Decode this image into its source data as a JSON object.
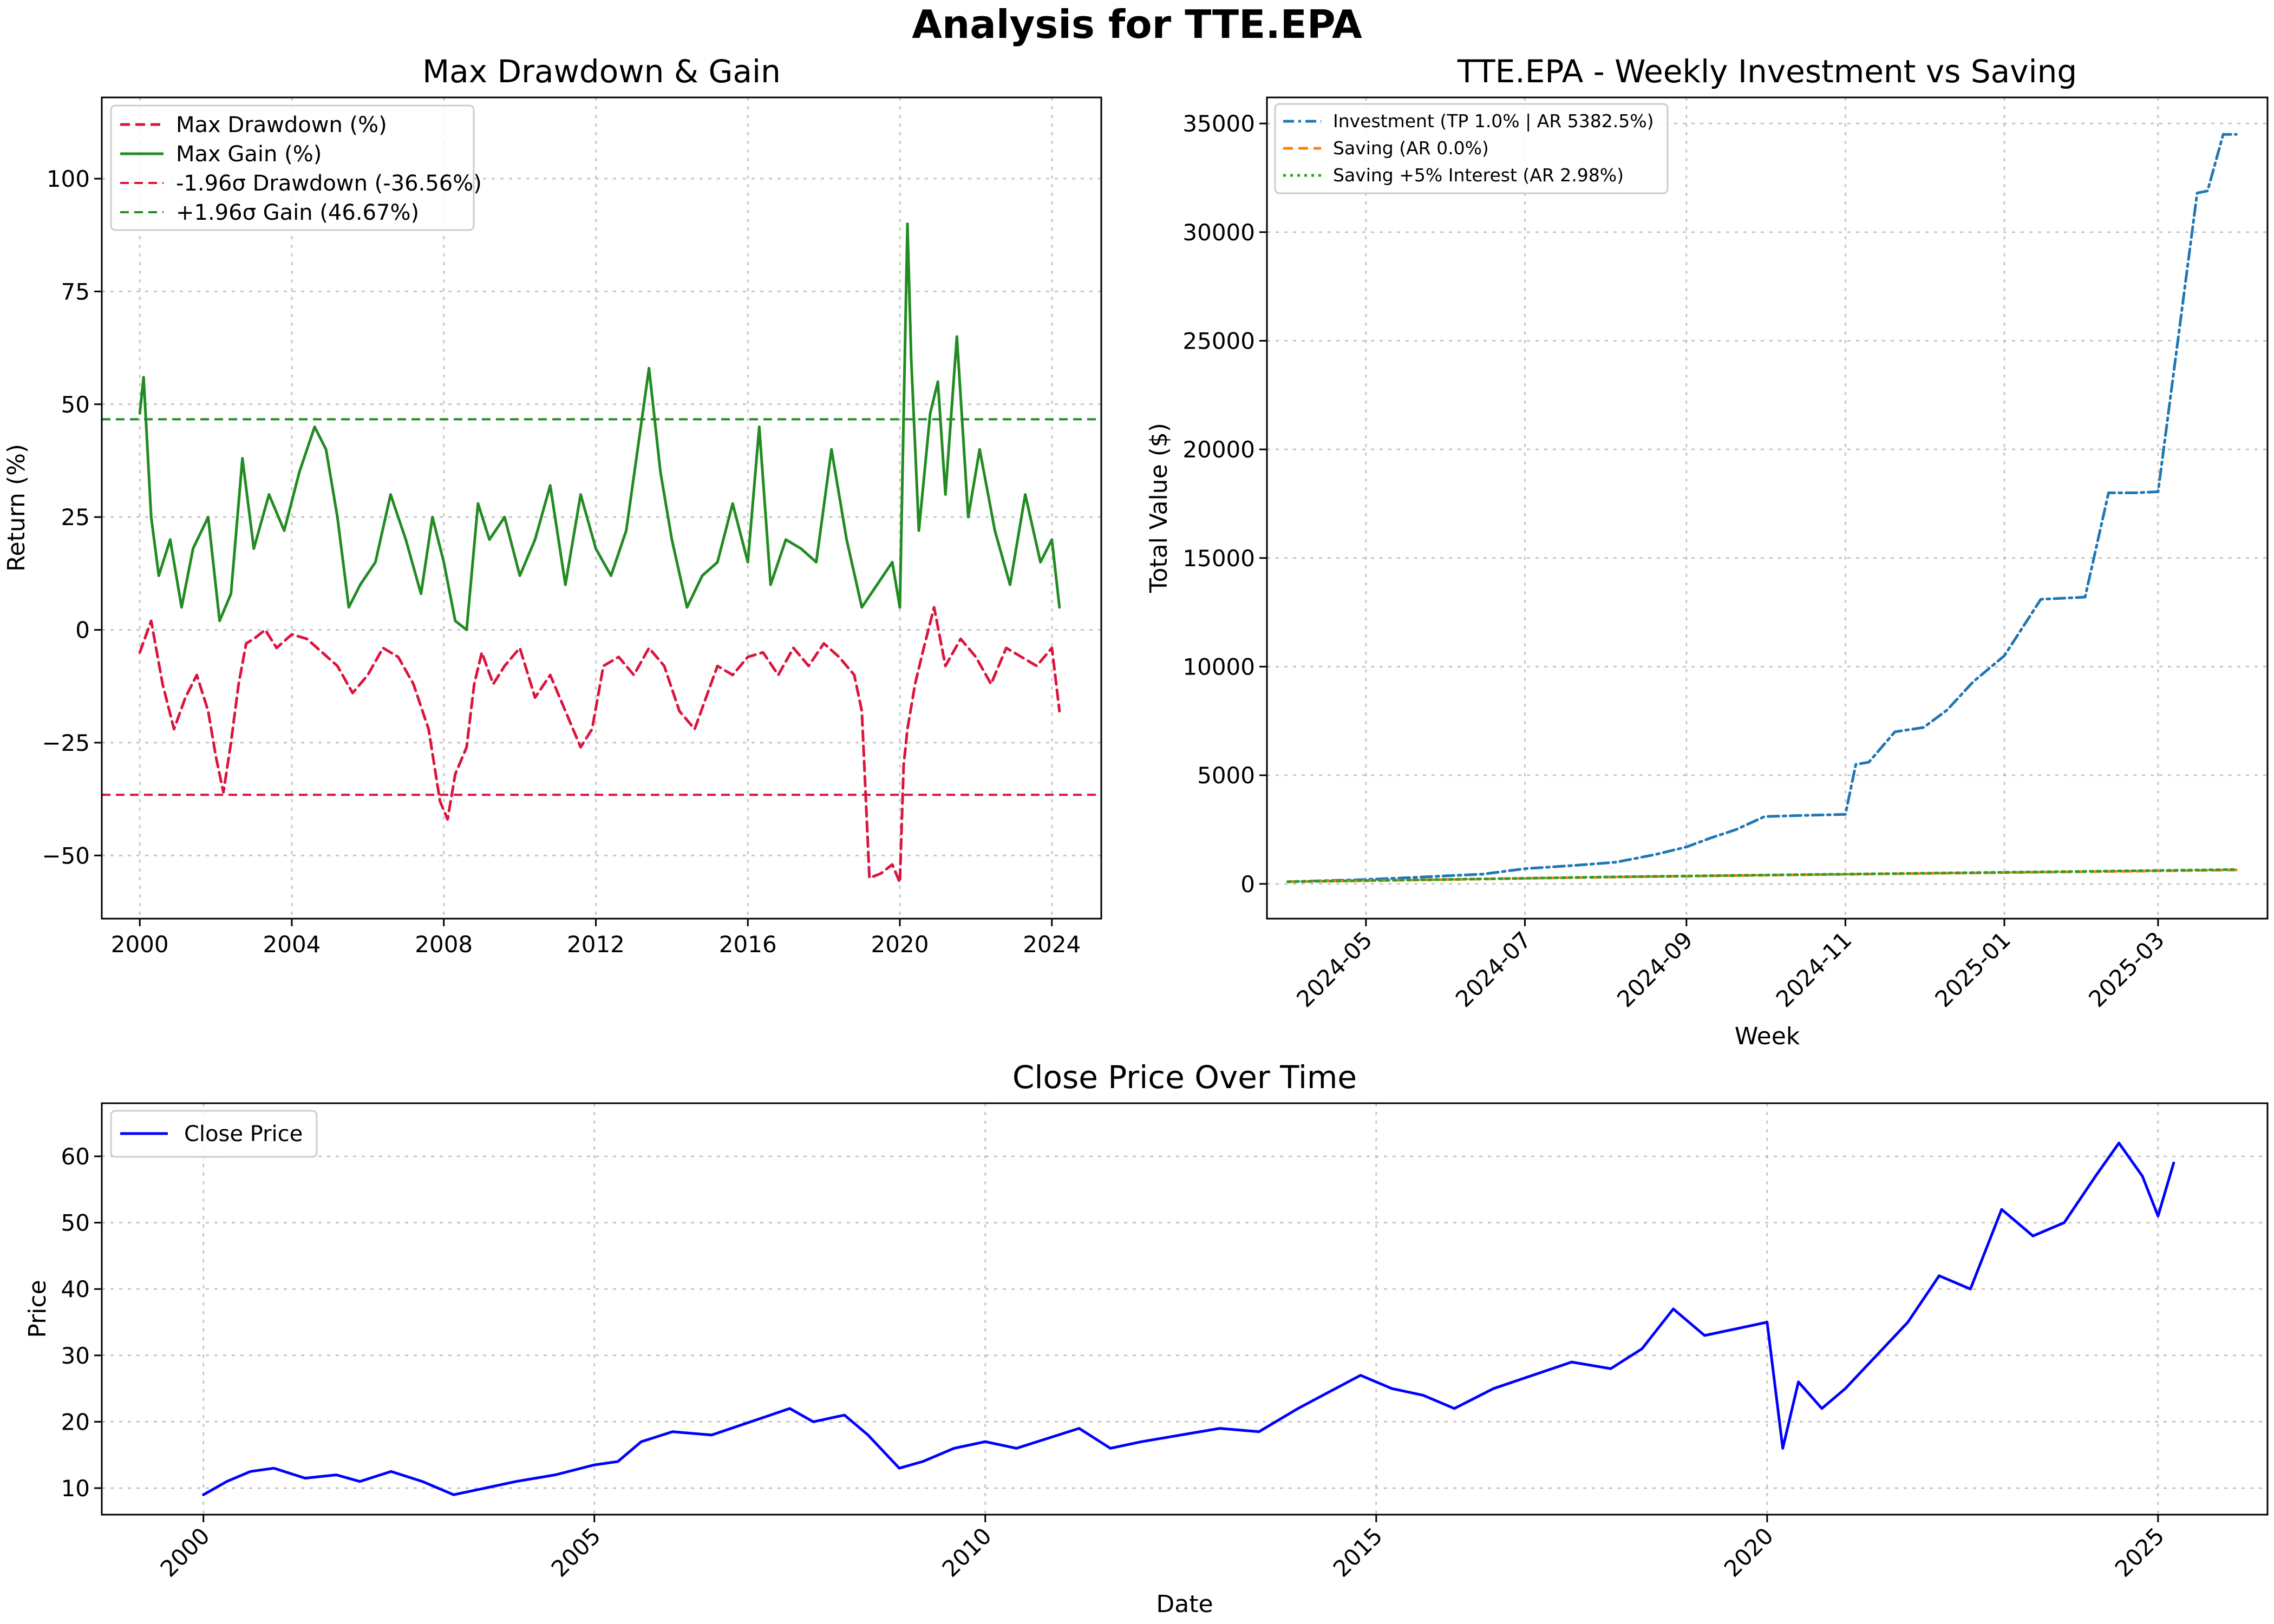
{
  "figure_title": "Analysis for TTE.EPA",
  "colors": {
    "drawdown": "#dc143c",
    "gain": "#228b22",
    "investment": "#1f77b4",
    "saving": "#ff7f0e",
    "saving_interest": "#2ca02c",
    "price": "#0000ff"
  },
  "chart_data": [
    {
      "type": "line",
      "title": "Max Drawdown & Gain",
      "xlabel": "",
      "ylabel": "Return (%)",
      "xlim": [
        1999.0,
        2025.3
      ],
      "ylim": [
        -64,
        118
      ],
      "xticks": [
        2000,
        2004,
        2008,
        2012,
        2016,
        2020,
        2024
      ],
      "xtick_labels": [
        "2000",
        "2004",
        "2008",
        "2012",
        "2016",
        "2020",
        "2024"
      ],
      "yticks": [
        -50,
        -25,
        0,
        25,
        50,
        75,
        100
      ],
      "ytick_labels": [
        "−50",
        "−25",
        "0",
        "25",
        "50",
        "75",
        "100"
      ],
      "grid": true,
      "legend_position": "top-left",
      "legend": [
        "Max Drawdown (%)",
        "Max Gain (%)",
        "-1.96σ Drawdown (-36.56%)",
        "+1.96σ Gain (46.67%)"
      ],
      "hlines": [
        {
          "name": "-1.96σ Drawdown (-36.56%)",
          "y": -36.56
        },
        {
          "name": "+1.96σ Gain (46.67%)",
          "y": 46.67
        }
      ],
      "series": [
        {
          "name": "Max Drawdown (%)",
          "x": [
            2000.0,
            2000.3,
            2000.6,
            2000.9,
            2001.2,
            2001.5,
            2001.8,
            2002.0,
            2002.2,
            2002.4,
            2002.6,
            2002.8,
            2003.0,
            2003.3,
            2003.6,
            2004.0,
            2004.4,
            2004.8,
            2005.2,
            2005.6,
            2006.0,
            2006.4,
            2006.8,
            2007.2,
            2007.6,
            2007.9,
            2008.1,
            2008.3,
            2008.6,
            2008.8,
            2009.0,
            2009.3,
            2009.6,
            2010.0,
            2010.4,
            2010.8,
            2011.2,
            2011.6,
            2011.9,
            2012.2,
            2012.6,
            2013.0,
            2013.4,
            2013.8,
            2014.2,
            2014.6,
            2014.9,
            2015.2,
            2015.6,
            2016.0,
            2016.4,
            2016.8,
            2017.2,
            2017.6,
            2018.0,
            2018.4,
            2018.8,
            2019.0,
            2019.2,
            2019.5,
            2019.8,
            2020.0,
            2020.1,
            2020.2,
            2020.4,
            2020.6,
            2020.9,
            2021.2,
            2021.6,
            2022.0,
            2022.4,
            2022.8,
            2023.2,
            2023.6,
            2024.0,
            2024.2
          ],
          "values": [
            -5,
            2,
            -12,
            -22,
            -15,
            -10,
            -18,
            -28,
            -36,
            -25,
            -12,
            -3,
            -2,
            0,
            -4,
            -1,
            -2,
            -5,
            -8,
            -14,
            -10,
            -4,
            -6,
            -12,
            -22,
            -38,
            -42,
            -32,
            -26,
            -12,
            -5,
            -12,
            -8,
            -4,
            -15,
            -10,
            -18,
            -26,
            -22,
            -8,
            -6,
            -10,
            -4,
            -8,
            -18,
            -22,
            -15,
            -8,
            -10,
            -6,
            -5,
            -10,
            -4,
            -8,
            -3,
            -6,
            -10,
            -18,
            -55,
            -54,
            -52,
            -56,
            -30,
            -22,
            -12,
            -5,
            5,
            -8,
            -2,
            -6,
            -12,
            -4,
            -6,
            -8,
            -4,
            -18
          ]
        },
        {
          "name": "Max Gain (%)",
          "x": [
            2000.0,
            2000.1,
            2000.3,
            2000.5,
            2000.8,
            2001.1,
            2001.4,
            2001.8,
            2002.1,
            2002.4,
            2002.7,
            2003.0,
            2003.4,
            2003.8,
            2004.2,
            2004.6,
            2004.9,
            2005.2,
            2005.5,
            2005.8,
            2006.2,
            2006.6,
            2007.0,
            2007.4,
            2007.7,
            2008.0,
            2008.3,
            2008.6,
            2008.9,
            2009.2,
            2009.6,
            2010.0,
            2010.4,
            2010.8,
            2011.2,
            2011.6,
            2012.0,
            2012.4,
            2012.8,
            2013.1,
            2013.4,
            2013.7,
            2014.0,
            2014.4,
            2014.8,
            2015.2,
            2015.6,
            2016.0,
            2016.3,
            2016.6,
            2017.0,
            2017.4,
            2017.8,
            2018.2,
            2018.6,
            2019.0,
            2019.4,
            2019.8,
            2020.0,
            2020.2,
            2020.3,
            2020.5,
            2020.8,
            2021.0,
            2021.2,
            2021.5,
            2021.8,
            2022.1,
            2022.5,
            2022.9,
            2023.3,
            2023.7,
            2024.0,
            2024.2
          ],
          "values": [
            48,
            56,
            25,
            12,
            20,
            5,
            18,
            25,
            2,
            8,
            38,
            18,
            30,
            22,
            35,
            45,
            40,
            25,
            5,
            10,
            15,
            30,
            20,
            8,
            25,
            15,
            2,
            0,
            28,
            20,
            25,
            12,
            20,
            32,
            10,
            30,
            18,
            12,
            22,
            40,
            58,
            35,
            20,
            5,
            12,
            15,
            28,
            15,
            45,
            10,
            20,
            18,
            15,
            40,
            20,
            5,
            10,
            15,
            5,
            90,
            60,
            22,
            48,
            55,
            30,
            65,
            25,
            40,
            22,
            10,
            30,
            15,
            20,
            5
          ]
        }
      ]
    },
    {
      "type": "line",
      "title": "TTE.EPA - Weekly Investment vs Saving",
      "xlabel": "Week",
      "ylabel": "Total Value ($)",
      "xlim": [
        "2024-03-24",
        "2025-04-12"
      ],
      "ylim": [
        -1600,
        36200
      ],
      "xticks": [
        "2024-05-01",
        "2024-07-01",
        "2024-09-01",
        "2024-11-01",
        "2025-01-01",
        "2025-03-01"
      ],
      "xtick_labels": [
        "2024-05",
        "2024-07",
        "2024-09",
        "2024-11",
        "2025-01",
        "2025-03"
      ],
      "yticks": [
        0,
        5000,
        10000,
        15000,
        20000,
        25000,
        30000,
        35000
      ],
      "ytick_labels": [
        "0",
        "5000",
        "10000",
        "15000",
        "20000",
        "25000",
        "30000",
        "35000"
      ],
      "grid": true,
      "legend_position": "top-left",
      "legend": [
        "Investment (TP 1.0% | AR 5382.5%)",
        "Saving (AR 0.0%)",
        "Saving +5% Interest (AR 2.98%)"
      ],
      "series": [
        {
          "name": "Investment (TP 1.0% | AR 5382.5%)",
          "x": [
            "2024-04-01",
            "2024-05-01",
            "2024-05-20",
            "2024-06-15",
            "2024-07-01",
            "2024-07-20",
            "2024-08-05",
            "2024-08-20",
            "2024-09-01",
            "2024-09-10",
            "2024-09-20",
            "2024-10-01",
            "2024-10-15",
            "2024-11-01",
            "2024-11-05",
            "2024-11-10",
            "2024-11-20",
            "2024-12-01",
            "2024-12-10",
            "2024-12-20",
            "2025-01-01",
            "2025-01-15",
            "2025-02-01",
            "2025-02-10",
            "2025-02-20",
            "2025-03-01",
            "2025-03-16",
            "2025-03-20",
            "2025-03-26",
            "2025-03-31"
          ],
          "values": [
            100,
            200,
            300,
            450,
            700,
            850,
            1000,
            1350,
            1700,
            2100,
            2500,
            3100,
            3150,
            3200,
            5500,
            5600,
            7000,
            7200,
            8000,
            9300,
            10500,
            13100,
            13200,
            18000,
            18000,
            18050,
            31800,
            31900,
            34500,
            34500
          ]
        },
        {
          "name": "Saving (AR 0.0%)",
          "x": [
            "2024-04-01",
            "2024-06-01",
            "2024-08-01",
            "2024-10-01",
            "2024-12-01",
            "2025-02-01",
            "2025-03-31"
          ],
          "values": [
            100,
            200,
            310,
            400,
            480,
            560,
            640
          ]
        },
        {
          "name": "Saving +5% Interest (AR 2.98%)",
          "x": [
            "2024-04-01",
            "2024-06-01",
            "2024-08-01",
            "2024-10-01",
            "2024-12-01",
            "2025-02-01",
            "2025-03-31"
          ],
          "values": [
            100,
            205,
            315,
            405,
            490,
            575,
            660
          ]
        }
      ]
    },
    {
      "type": "line",
      "title": "Close Price Over Time",
      "xlabel": "Date",
      "ylabel": "Price",
      "xlim": [
        1998.7,
        2026.4
      ],
      "ylim": [
        6,
        68
      ],
      "xticks": [
        2000,
        2005,
        2010,
        2015,
        2020,
        2025
      ],
      "xtick_labels": [
        "2000",
        "2005",
        "2010",
        "2015",
        "2020",
        "2025"
      ],
      "yticks": [
        10,
        20,
        30,
        40,
        50,
        60
      ],
      "ytick_labels": [
        "10",
        "20",
        "30",
        "40",
        "50",
        "60"
      ],
      "grid": true,
      "legend_position": "top-left",
      "legend": [
        "Close Price"
      ],
      "series": [
        {
          "name": "Close Price",
          "x": [
            2000.0,
            2000.3,
            2000.6,
            2000.9,
            2001.3,
            2001.7,
            2002.0,
            2002.4,
            2002.8,
            2003.2,
            2003.6,
            2004.0,
            2004.5,
            2005.0,
            2005.3,
            2005.6,
            2006.0,
            2006.5,
            2007.0,
            2007.5,
            2007.8,
            2008.2,
            2008.5,
            2008.9,
            2009.2,
            2009.6,
            2010.0,
            2010.4,
            2010.8,
            2011.2,
            2011.6,
            2012.0,
            2012.5,
            2013.0,
            2013.5,
            2014.0,
            2014.4,
            2014.8,
            2015.2,
            2015.6,
            2016.0,
            2016.5,
            2017.0,
            2017.5,
            2018.0,
            2018.4,
            2018.8,
            2019.2,
            2019.6,
            2020.0,
            2020.2,
            2020.4,
            2020.7,
            2021.0,
            2021.4,
            2021.8,
            2022.2,
            2022.6,
            2023.0,
            2023.4,
            2023.8,
            2024.2,
            2024.5,
            2024.8,
            2025.0,
            2025.2
          ],
          "values": [
            9,
            11,
            12.5,
            13,
            11.5,
            12,
            11,
            12.5,
            11,
            9,
            10,
            11,
            12,
            13.5,
            14,
            17,
            18.5,
            18,
            20,
            22,
            20,
            21,
            18,
            13,
            14,
            16,
            17,
            16,
            17.5,
            19,
            16,
            17,
            18,
            19,
            18.5,
            22,
            24.5,
            27,
            25,
            24,
            22,
            25,
            27,
            29,
            28,
            31,
            37,
            33,
            34,
            35,
            16,
            26,
            22,
            25,
            30,
            35,
            42,
            40,
            52,
            48,
            50,
            57,
            62,
            57,
            51,
            59
          ]
        }
      ]
    }
  ]
}
